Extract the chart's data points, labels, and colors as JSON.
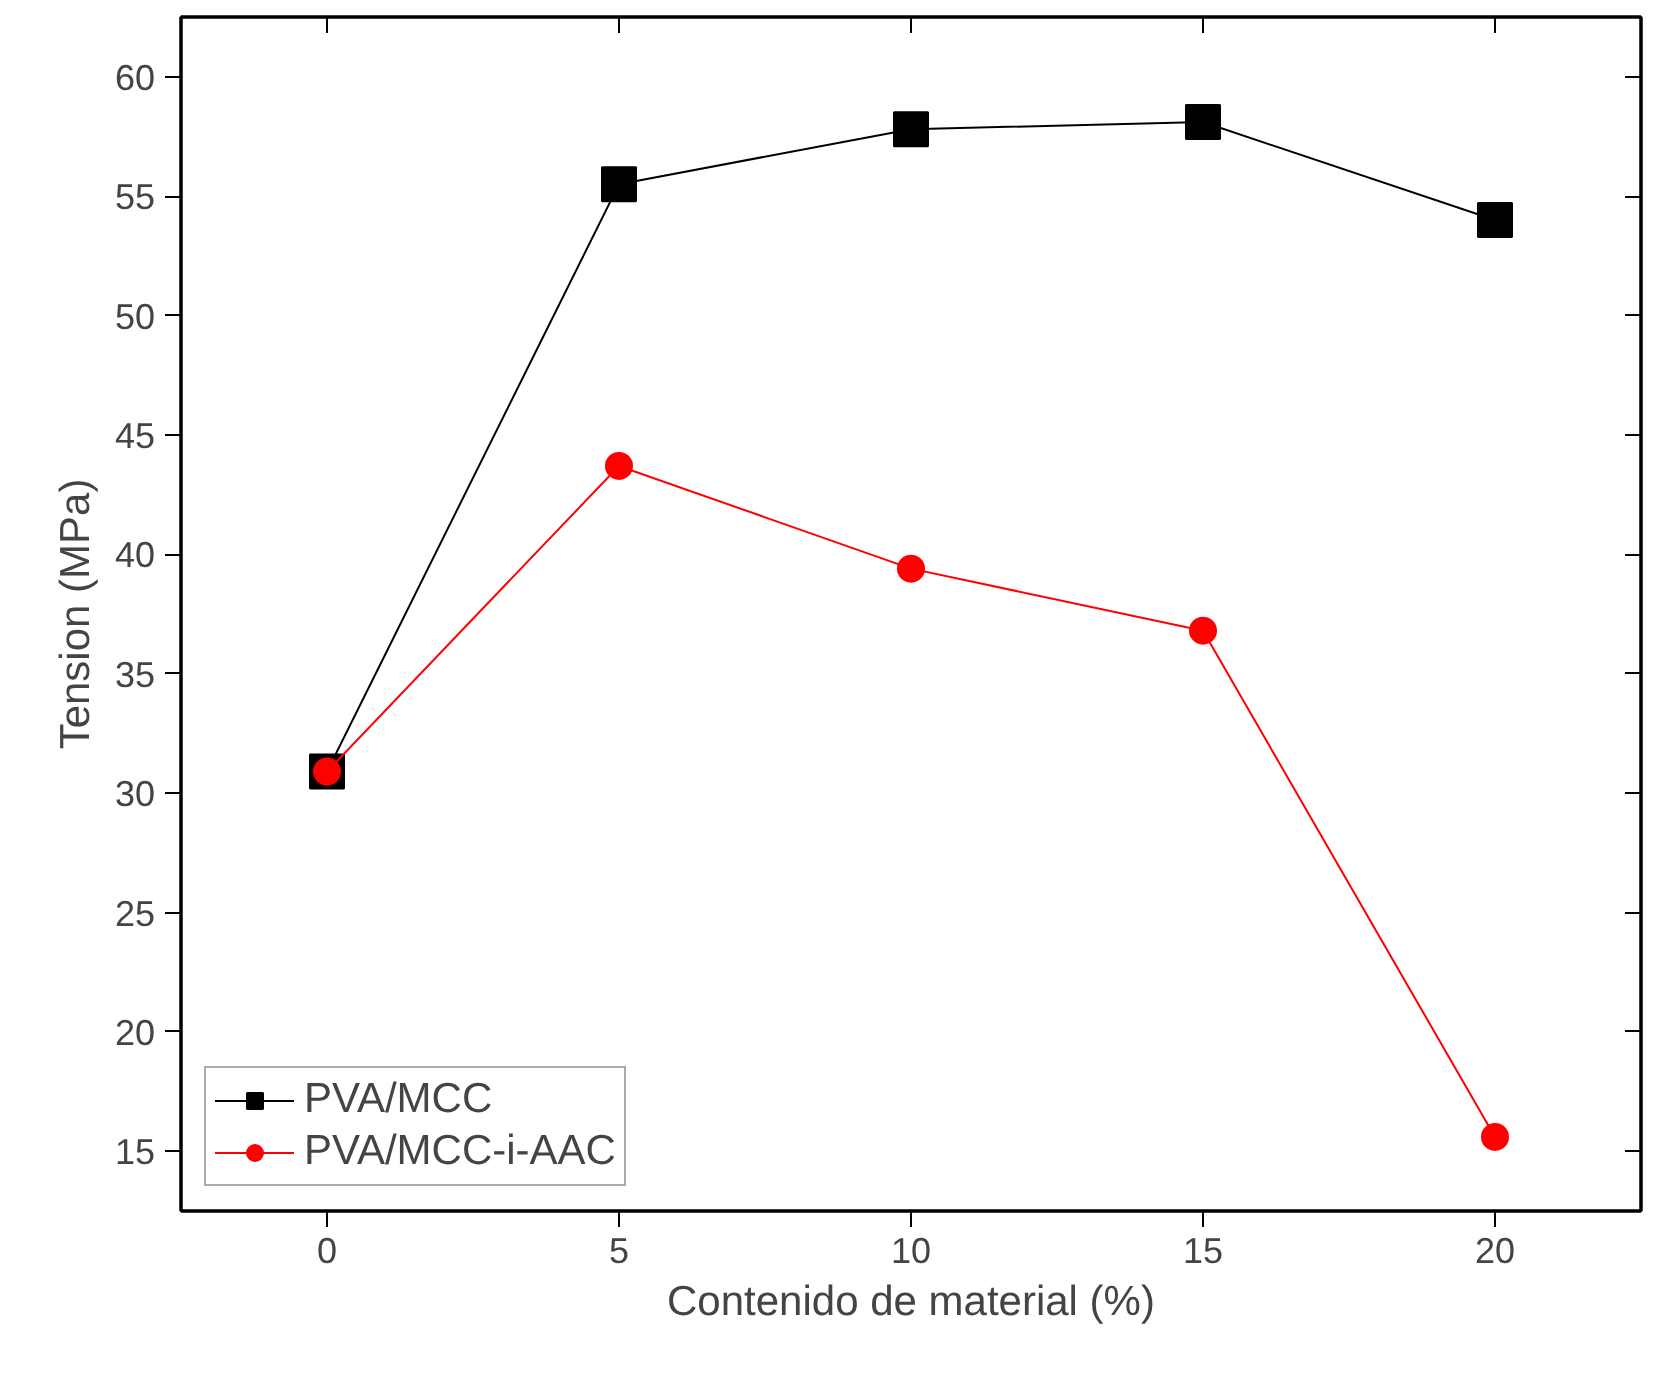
{
  "chart_data": {
    "type": "line",
    "xlabel": "Contenido de material (%)",
    "ylabel": "Tension (MPa)",
    "x": [
      0,
      5,
      10,
      15,
      20
    ],
    "series": [
      {
        "name": "PVA/MCC",
        "color": "#000000",
        "marker": "square",
        "values": [
          30.9,
          55.5,
          57.8,
          58.1,
          54.0
        ]
      },
      {
        "name": "PVA/MCC-i-AAC",
        "color": "#ff0000",
        "marker": "circle",
        "values": [
          30.9,
          43.7,
          39.4,
          36.8,
          15.6
        ]
      }
    ],
    "xlim": [
      -2.5,
      22.5
    ],
    "ylim": [
      12.5,
      62.5
    ],
    "xticks": [
      0,
      5,
      10,
      15,
      20
    ],
    "yticks": [
      15,
      20,
      25,
      30,
      35,
      40,
      45,
      50,
      55,
      60
    ],
    "grid": false,
    "legend": "bottom left",
    "line_style": "solid"
  }
}
